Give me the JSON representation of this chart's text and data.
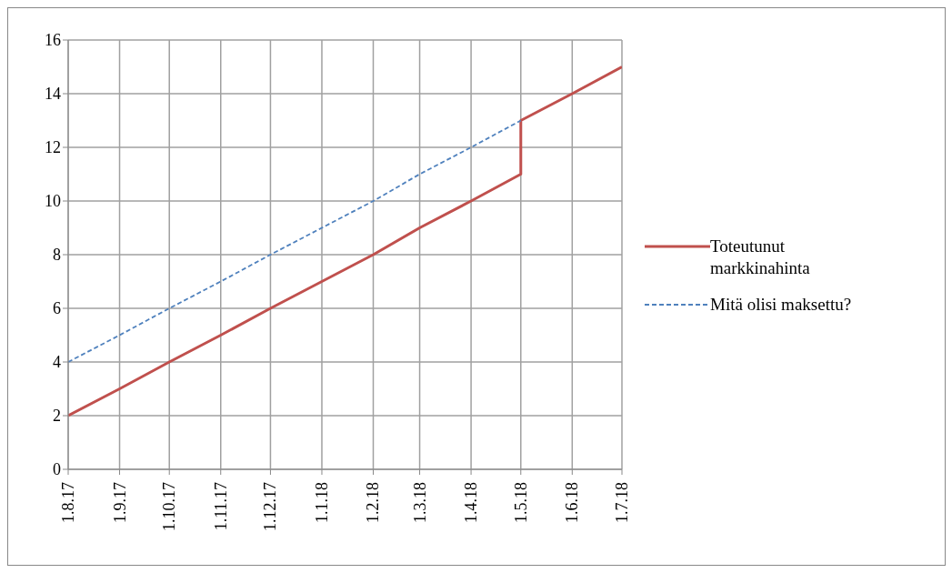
{
  "chart_data": {
    "type": "line",
    "series": [
      {
        "name": "Toteutunut markkinahinta",
        "color": "#c0504d",
        "line_style": "solid",
        "x": [
          "2017-08-01",
          "2017-09-01",
          "2017-10-01",
          "2017-11-01",
          "2017-12-01",
          "2018-01-01",
          "2018-02-01",
          "2018-03-01",
          "2018-04-01",
          "2018-05-01",
          "2018-05-01",
          "2018-06-01",
          "2018-07-01"
        ],
        "values": [
          2,
          3,
          4,
          5,
          6,
          7,
          8,
          9,
          10,
          11,
          13,
          14,
          15
        ]
      },
      {
        "name": "Mitä olisi maksettu?",
        "color": "#4f81bd",
        "line_style": "dashed",
        "x": [
          "2017-08-01",
          "2017-09-01",
          "2017-10-01",
          "2017-11-01",
          "2017-12-01",
          "2018-01-01",
          "2018-02-01",
          "2018-03-01",
          "2018-04-01",
          "2018-05-01"
        ],
        "values": [
          4,
          5,
          6,
          7,
          8,
          9,
          10,
          11,
          12,
          13
        ]
      }
    ],
    "xlim": [
      "2017-08-01",
      "2018-07-01"
    ],
    "xticks": [
      {
        "value": "2017-08-01",
        "label": "1.8.17"
      },
      {
        "value": "2017-09-01",
        "label": "1.9.17"
      },
      {
        "value": "2017-10-01",
        "label": "1.10.17"
      },
      {
        "value": "2017-11-01",
        "label": "1.11.17"
      },
      {
        "value": "2017-12-01",
        "label": "1.12.17"
      },
      {
        "value": "2018-01-01",
        "label": "1.1.18"
      },
      {
        "value": "2018-02-01",
        "label": "1.2.18"
      },
      {
        "value": "2018-03-01",
        "label": "1.3.18"
      },
      {
        "value": "2018-04-01",
        "label": "1.4.18"
      },
      {
        "value": "2018-05-01",
        "label": "1.5.18"
      },
      {
        "value": "2018-06-01",
        "label": "1.6.18"
      },
      {
        "value": "2018-07-01",
        "label": "1.7.18"
      }
    ],
    "ylim": [
      0,
      16
    ],
    "yticks": [
      0,
      2,
      4,
      6,
      8,
      10,
      12,
      14,
      16
    ],
    "grid": true,
    "legend": "right",
    "marker": "none"
  }
}
